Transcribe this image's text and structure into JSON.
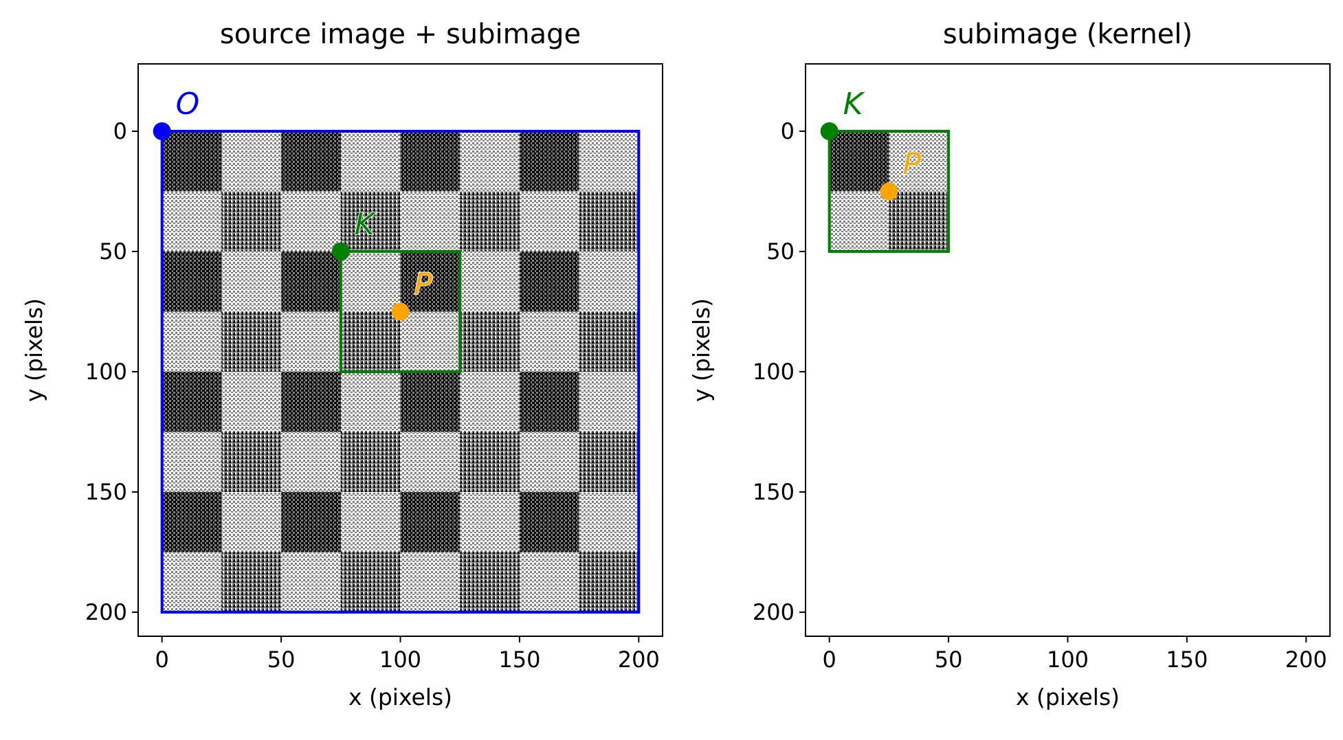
{
  "colors": {
    "origin": "#0000ff",
    "kernel": "#008000",
    "point": "#ffa500",
    "checker_dark": "#000000",
    "checker_mid": "#808080",
    "checker_light": "#ffffff"
  },
  "chart_data": [
    {
      "type": "image",
      "title": "source image + subimage",
      "xlabel": "x (pixels)",
      "ylabel": "y (pixels)",
      "xlim": [
        -10,
        210
      ],
      "ylim": [
        210,
        -28
      ],
      "xticks": [
        "0",
        "50",
        "100",
        "150",
        "200"
      ],
      "yticks": [
        "0",
        "50",
        "100",
        "150",
        "200"
      ],
      "image": {
        "x": [
          0,
          200
        ],
        "y": [
          0,
          200
        ],
        "square_size": 25,
        "pattern": "noisy checkerboard"
      },
      "rectangles": [
        {
          "name": "source image",
          "x0": 0,
          "y0": 0,
          "x1": 200,
          "y1": 200,
          "color": "#0000ff"
        },
        {
          "name": "subimage",
          "x0": 75,
          "y0": 50,
          "x1": 125,
          "y1": 100,
          "color": "#008000"
        }
      ],
      "points": [
        {
          "label": "O",
          "x": 0,
          "y": 0,
          "color": "#0000ff"
        },
        {
          "label": "K",
          "x": 75,
          "y": 50,
          "color": "#008000"
        },
        {
          "label": "P",
          "x": 100,
          "y": 75,
          "color": "#ffa500"
        }
      ]
    },
    {
      "type": "image",
      "title": "subimage (kernel)",
      "xlabel": "x (pixels)",
      "ylabel": "y (pixels)",
      "xlim": [
        -10,
        210
      ],
      "ylim": [
        210,
        -28
      ],
      "xticks": [
        "0",
        "50",
        "100",
        "150",
        "200"
      ],
      "yticks": [
        "0",
        "50",
        "100",
        "150",
        "200"
      ],
      "image": {
        "x": [
          0,
          50
        ],
        "y": [
          0,
          50
        ],
        "square_size": 25,
        "pattern": "noisy checkerboard (kernel crop)"
      },
      "rectangles": [
        {
          "name": "kernel",
          "x0": 0,
          "y0": 0,
          "x1": 50,
          "y1": 50,
          "color": "#008000"
        }
      ],
      "points": [
        {
          "label": "K",
          "x": 0,
          "y": 0,
          "color": "#008000"
        },
        {
          "label": "P",
          "x": 25,
          "y": 25,
          "color": "#ffa500"
        }
      ]
    }
  ]
}
